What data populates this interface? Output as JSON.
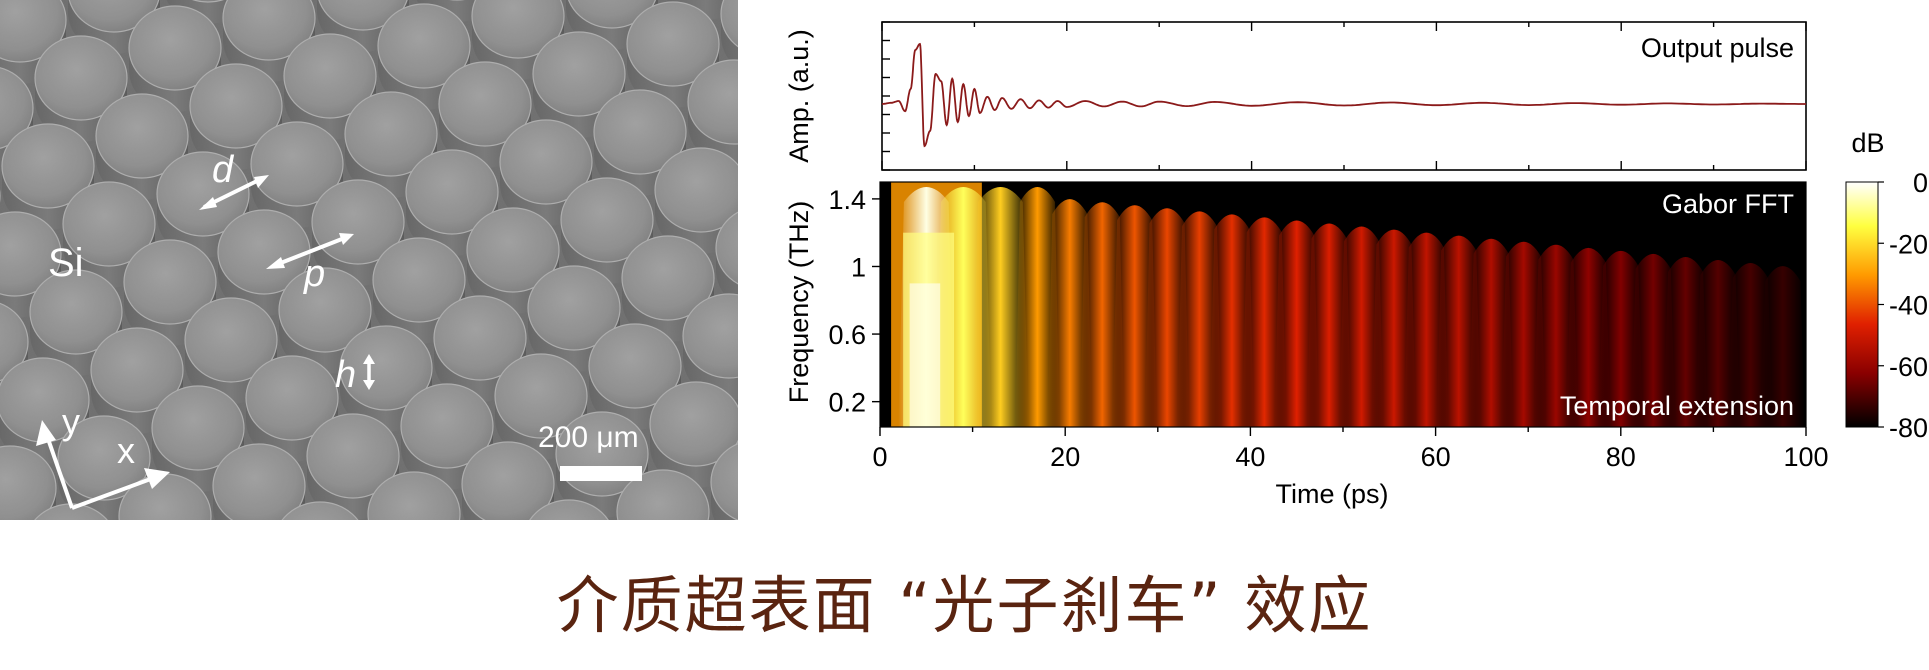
{
  "sem_panel": {
    "labels": {
      "material": "Si",
      "diameter": "d",
      "period": "p",
      "height": "h",
      "axis_y": "y",
      "axis_x": "x",
      "scale_bar": "200 μm"
    }
  },
  "caption": "介质超表面 “光子刹车” 效应",
  "chart_data": [
    {
      "type": "line",
      "title": "Output pulse",
      "ylabel": "Amp. (a.u.)",
      "xlim": [
        0,
        100
      ],
      "series": [
        {
          "color": "#8b1a1a",
          "x": [
            0,
            1,
            1.8,
            2.5,
            3.1,
            3.6,
            4.1,
            4.6,
            5.2,
            5.8,
            6.4,
            7.0,
            7.6,
            8.2,
            8.8,
            9.4,
            10.0,
            10.6,
            11.4,
            12.2,
            13.0,
            14.0,
            15.0,
            16.0,
            17.0,
            18.0,
            19.0,
            20.0,
            22.0,
            24.0,
            26.0,
            28.0,
            30.0,
            33.0,
            36.0,
            40.0,
            45.0,
            50.0,
            55.0,
            60.0,
            65.0,
            70.0,
            75.0,
            80.0,
            85.0,
            90.0,
            95.0,
            100.0
          ],
          "y": [
            0,
            0.02,
            0.05,
            -0.12,
            0.25,
            0.9,
            1.0,
            -0.7,
            -0.45,
            0.5,
            0.38,
            -0.35,
            0.42,
            -0.3,
            0.33,
            -0.2,
            0.25,
            -0.15,
            0.12,
            -0.1,
            0.1,
            -0.08,
            0.08,
            -0.07,
            0.06,
            -0.06,
            0.05,
            -0.05,
            0.05,
            -0.04,
            0.04,
            -0.04,
            0.04,
            -0.035,
            0.035,
            -0.03,
            0.03,
            -0.025,
            0.025,
            -0.02,
            0.02,
            -0.018,
            0.015,
            -0.012,
            0.01,
            -0.008,
            0.006,
            0
          ]
        }
      ]
    },
    {
      "type": "heatmap",
      "title": "Gabor FFT",
      "annotation": "Temporal extension",
      "xlabel": "Time (ps)",
      "ylabel": "Frequency (THz)",
      "xlim": [
        0,
        100
      ],
      "ylim": [
        0.05,
        1.5
      ],
      "x_ticks": [
        "0",
        "20",
        "40",
        "60",
        "80",
        "100"
      ],
      "y_ticks": [
        "0.2",
        "0.6",
        "1",
        "1.4"
      ],
      "y_tick_values": [
        0.2,
        0.6,
        1.0,
        1.4
      ],
      "colorbar": {
        "label": "dB",
        "ticks": [
          "0",
          "-20",
          "-40",
          "-60",
          "-80"
        ],
        "range": [
          -80,
          0
        ]
      },
      "ridge_times_ps": [
        5,
        9,
        13,
        17,
        20.5,
        24,
        27.5,
        31,
        34.5,
        38,
        41.5,
        45,
        48.5,
        52,
        55.5,
        59,
        62.5,
        66,
        69.5,
        73,
        76.5,
        80,
        83.5,
        87,
        90.5,
        94,
        97.5
      ],
      "ridge_peak_db": [
        -2,
        -12,
        -22,
        -30,
        -34,
        -37,
        -39,
        -41,
        -42,
        -44,
        -45,
        -46,
        -47,
        -49,
        -50,
        -52,
        -53,
        -55,
        -57,
        -59,
        -61,
        -63,
        -65,
        -67,
        -69,
        -71,
        -73
      ]
    }
  ]
}
